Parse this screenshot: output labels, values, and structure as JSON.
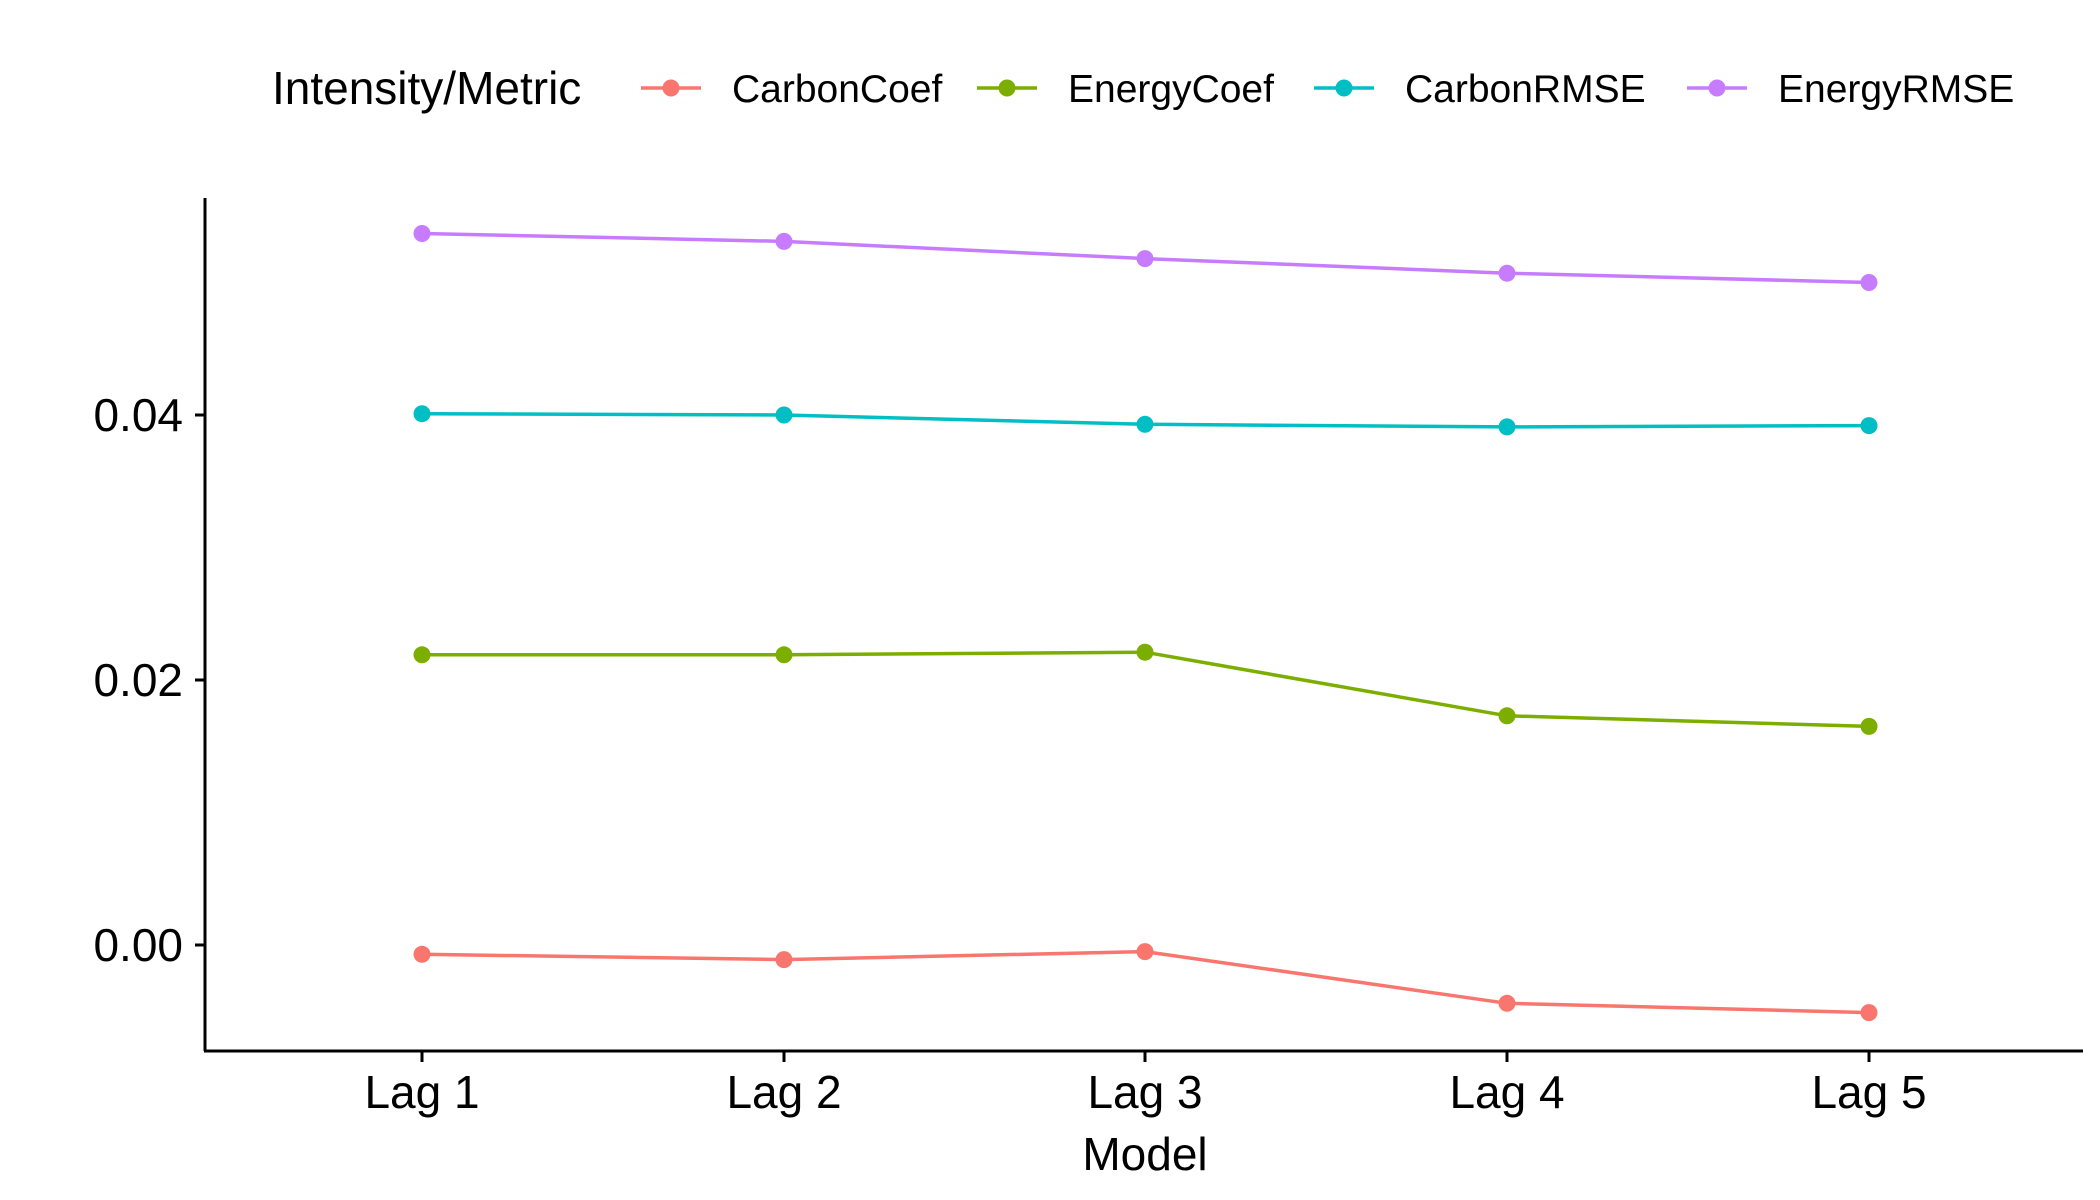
{
  "chart_data": {
    "type": "line",
    "title": "",
    "xlabel": "Model",
    "ylabel": "",
    "categories": [
      "Lag 1",
      "Lag 2",
      "Lag 3",
      "Lag 4",
      "Lag 5"
    ],
    "ylim": [
      -0.008,
      0.056
    ],
    "yticks": [
      0.0,
      0.02,
      0.04
    ],
    "ytick_labels": [
      "0.00",
      "0.02",
      "0.04"
    ],
    "grid": false,
    "legend": {
      "title": "Intensity/Metric",
      "position": "top"
    },
    "series": [
      {
        "name": "CarbonCoef",
        "color": "#F8766D",
        "values": [
          -0.0007,
          -0.0011,
          -0.0005,
          -0.0044,
          -0.0051
        ]
      },
      {
        "name": "EnergyCoef",
        "color": "#7CAE00",
        "values": [
          0.0219,
          0.0219,
          0.0221,
          0.0173,
          0.0165
        ]
      },
      {
        "name": "CarbonRMSE",
        "color": "#00BFC4",
        "values": [
          0.0401,
          0.04,
          0.0393,
          0.0391,
          0.0392
        ]
      },
      {
        "name": "EnergyRMSE",
        "color": "#C77CFF",
        "values": [
          0.0537,
          0.0531,
          0.0518,
          0.0507,
          0.05
        ]
      }
    ]
  }
}
